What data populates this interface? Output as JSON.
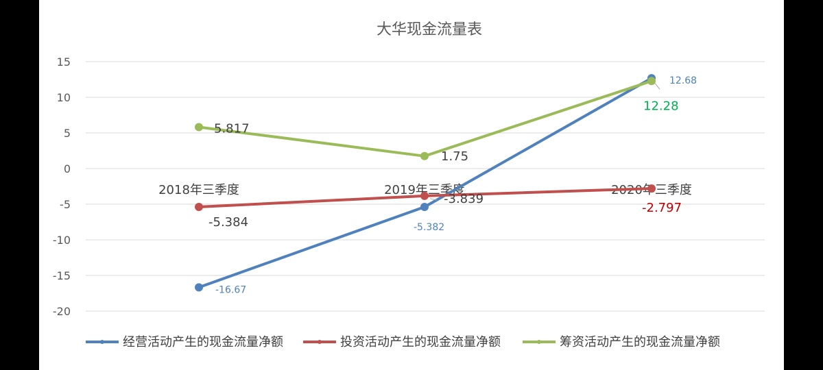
{
  "chart_data": {
    "type": "line",
    "title": "大华现金流量表",
    "categories": [
      "2018年三季度",
      "2019年三季度",
      "2020年三季度"
    ],
    "ylim": [
      -20,
      15
    ],
    "yticks": [
      15,
      10,
      5,
      0,
      -5,
      -10,
      -15,
      -20
    ],
    "grid": true,
    "legend_position": "bottom",
    "series": [
      {
        "name": "经营活动产生的现金流量净额",
        "values": [
          -16.67,
          -5.382,
          12.68
        ],
        "labels": [
          "-16.67",
          "-5.382",
          "12.68"
        ],
        "color": "#4f81bd"
      },
      {
        "name": "投资活动产生的现金流量净额",
        "values": [
          -5.384,
          -3.839,
          -2.797
        ],
        "labels": [
          "-5.384",
          "-3.839",
          "-2.797"
        ],
        "color": "#c0504d"
      },
      {
        "name": "筹资活动产生的现金流量净额",
        "values": [
          5.817,
          1.75,
          12.28
        ],
        "labels": [
          "5.817",
          "1.75",
          "12.28"
        ],
        "color": "#9bbb59"
      }
    ],
    "label_colors": [
      "#4f81bd",
      "#404040",
      "#404040"
    ],
    "highlight_label_colors": {
      "investing_last": "#c00000",
      "financing_last": "#00b050"
    }
  }
}
